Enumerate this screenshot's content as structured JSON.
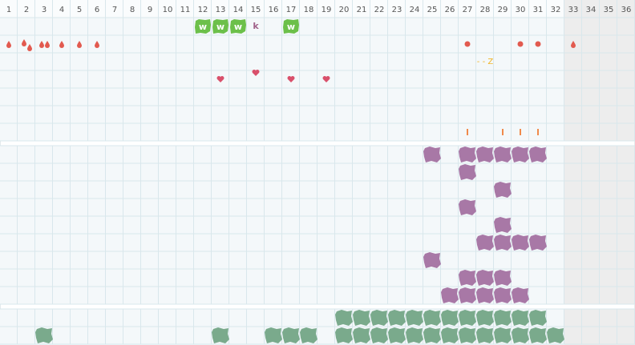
{
  "header": {
    "columns": [
      "1",
      "2",
      "3",
      "4",
      "5",
      "6",
      "7",
      "8",
      "9",
      "10",
      "11",
      "12",
      "13",
      "14",
      "15",
      "16",
      "17",
      "18",
      "19",
      "20",
      "21",
      "22",
      "23",
      "24",
      "25",
      "26",
      "27",
      "28",
      "29",
      "30",
      "31",
      "32",
      "33",
      "34",
      "35",
      "36"
    ],
    "shaded_from": 33
  },
  "section1": {
    "w_label": "w",
    "w_cols": [
      12,
      13,
      14,
      17
    ],
    "k": {
      "text": "k",
      "col": 15
    },
    "drop_cols": [
      1,
      2,
      2,
      3,
      3,
      4,
      5,
      6,
      33
    ],
    "dot_cols": [
      27,
      30,
      31
    ],
    "z": {
      "text": "- - Z",
      "col": 28
    },
    "heart_cols": [
      13,
      15,
      17,
      19
    ],
    "tick_cols": [
      27,
      29,
      30,
      31
    ]
  },
  "section2": {
    "rows": [
      [
        25,
        27,
        28,
        29,
        30,
        31
      ],
      [
        27
      ],
      [
        29
      ],
      [
        27
      ],
      [
        29
      ],
      [
        28,
        29,
        30,
        31
      ],
      [
        25
      ],
      [
        27,
        28,
        29
      ],
      [
        26,
        27,
        28,
        29,
        30
      ]
    ]
  },
  "section3": {
    "rows": [
      [
        20,
        21,
        22,
        23,
        24,
        25,
        26,
        27,
        28,
        29,
        30,
        31
      ],
      [
        3,
        13,
        16,
        17,
        18,
        20,
        21,
        22,
        23,
        24,
        25,
        26,
        27,
        28,
        29,
        30,
        31,
        32
      ]
    ]
  }
}
